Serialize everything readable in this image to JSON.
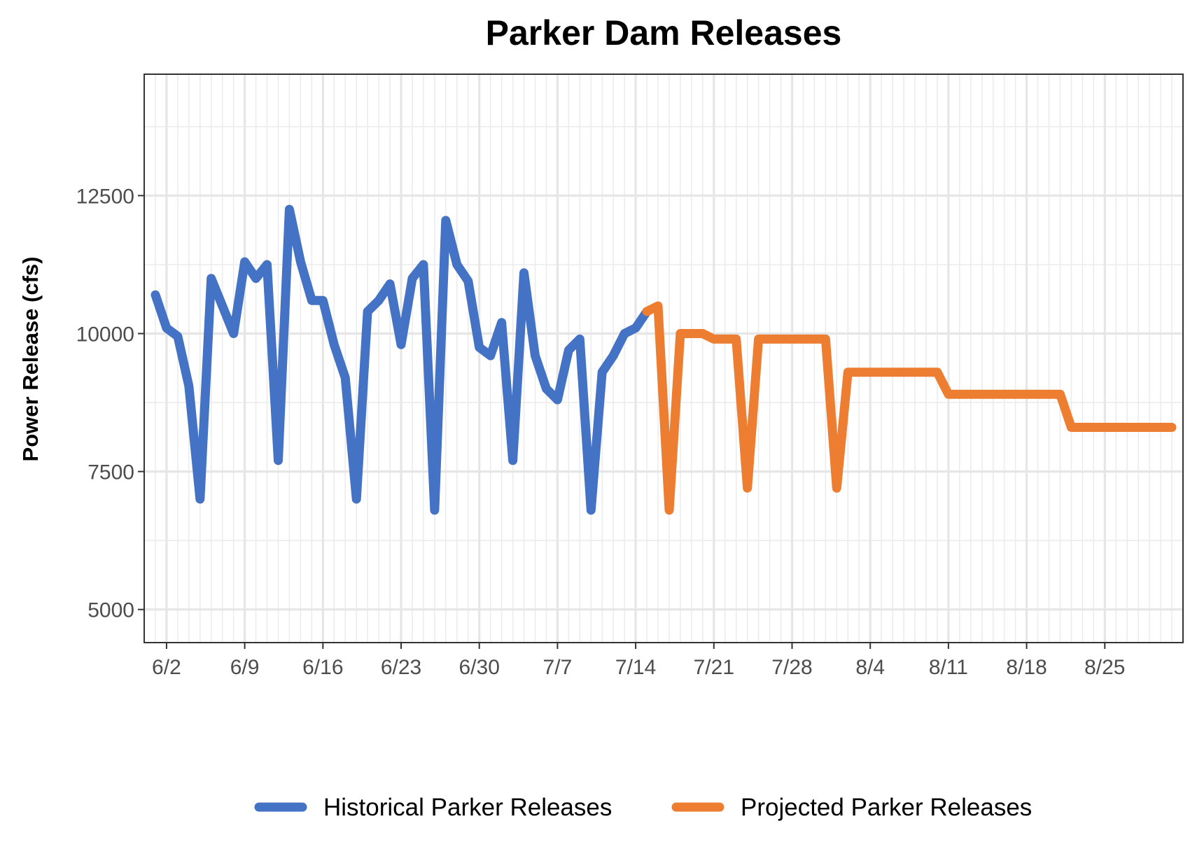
{
  "chart_data": {
    "type": "line",
    "title": "Parker Dam Releases",
    "xlabel": "",
    "ylabel": "Power Release (cfs)",
    "ylim": [
      4400,
      14700
    ],
    "y_ticks": [
      5000,
      7500,
      10000,
      12500
    ],
    "y_tick_labels": [
      "5000",
      "7500",
      "10000",
      "12500"
    ],
    "x_range": [
      "2025-05-31",
      "2025-09-01"
    ],
    "x_ticks": [
      "2025-06-02",
      "2025-06-09",
      "2025-06-16",
      "2025-06-23",
      "2025-06-30",
      "2025-07-07",
      "2025-07-14",
      "2025-07-21",
      "2025-07-28",
      "2025-08-04",
      "2025-08-11",
      "2025-08-18",
      "2025-08-25"
    ],
    "x_tick_labels": [
      "6/2",
      "6/9",
      "6/16",
      "6/23",
      "6/30",
      "7/7",
      "7/14",
      "7/21",
      "7/28",
      "8/4",
      "8/11",
      "8/18",
      "8/25"
    ],
    "grid": true,
    "legend_position": "bottom",
    "series": [
      {
        "name": "Historical Parker Releases",
        "color": "#4472C4",
        "points": [
          [
            "2025-06-01",
            10700
          ],
          [
            "2025-06-02",
            10100
          ],
          [
            "2025-06-03",
            9950
          ],
          [
            "2025-06-04",
            9050
          ],
          [
            "2025-06-05",
            7000
          ],
          [
            "2025-06-06",
            11000
          ],
          [
            "2025-06-07",
            10500
          ],
          [
            "2025-06-08",
            10000
          ],
          [
            "2025-06-09",
            11300
          ],
          [
            "2025-06-10",
            11000
          ],
          [
            "2025-06-11",
            11250
          ],
          [
            "2025-06-12",
            7700
          ],
          [
            "2025-06-13",
            12250
          ],
          [
            "2025-06-14",
            11300
          ],
          [
            "2025-06-15",
            10600
          ],
          [
            "2025-06-16",
            10600
          ],
          [
            "2025-06-17",
            9800
          ],
          [
            "2025-06-18",
            9200
          ],
          [
            "2025-06-19",
            7000
          ],
          [
            "2025-06-20",
            10400
          ],
          [
            "2025-06-21",
            10600
          ],
          [
            "2025-06-22",
            10900
          ],
          [
            "2025-06-23",
            9800
          ],
          [
            "2025-06-24",
            11000
          ],
          [
            "2025-06-25",
            11250
          ],
          [
            "2025-06-26",
            6800
          ],
          [
            "2025-06-27",
            12050
          ],
          [
            "2025-06-28",
            11250
          ],
          [
            "2025-06-29",
            10950
          ],
          [
            "2025-06-30",
            9750
          ],
          [
            "2025-07-01",
            9600
          ],
          [
            "2025-07-02",
            10200
          ],
          [
            "2025-07-03",
            7700
          ],
          [
            "2025-07-04",
            11100
          ],
          [
            "2025-07-05",
            9600
          ],
          [
            "2025-07-06",
            9000
          ],
          [
            "2025-07-07",
            8800
          ],
          [
            "2025-07-08",
            9700
          ],
          [
            "2025-07-09",
            9900
          ],
          [
            "2025-07-10",
            6800
          ],
          [
            "2025-07-11",
            9300
          ],
          [
            "2025-07-12",
            9600
          ],
          [
            "2025-07-13",
            10000
          ],
          [
            "2025-07-14",
            10100
          ],
          [
            "2025-07-15",
            10400
          ]
        ]
      },
      {
        "name": "Projected Parker Releases",
        "color": "#ED7D31",
        "points": [
          [
            "2025-07-15",
            10400
          ],
          [
            "2025-07-16",
            10500
          ],
          [
            "2025-07-17",
            6800
          ],
          [
            "2025-07-18",
            10000
          ],
          [
            "2025-07-19",
            10000
          ],
          [
            "2025-07-20",
            10000
          ],
          [
            "2025-07-21",
            9900
          ],
          [
            "2025-07-22",
            9900
          ],
          [
            "2025-07-23",
            9900
          ],
          [
            "2025-07-24",
            7200
          ],
          [
            "2025-07-25",
            9900
          ],
          [
            "2025-07-26",
            9900
          ],
          [
            "2025-07-27",
            9900
          ],
          [
            "2025-07-28",
            9900
          ],
          [
            "2025-07-29",
            9900
          ],
          [
            "2025-07-30",
            9900
          ],
          [
            "2025-07-31",
            9900
          ],
          [
            "2025-08-01",
            7200
          ],
          [
            "2025-08-02",
            9300
          ],
          [
            "2025-08-03",
            9300
          ],
          [
            "2025-08-04",
            9300
          ],
          [
            "2025-08-05",
            9300
          ],
          [
            "2025-08-06",
            9300
          ],
          [
            "2025-08-07",
            9300
          ],
          [
            "2025-08-08",
            9300
          ],
          [
            "2025-08-09",
            9300
          ],
          [
            "2025-08-10",
            9300
          ],
          [
            "2025-08-11",
            8900
          ],
          [
            "2025-08-12",
            8900
          ],
          [
            "2025-08-13",
            8900
          ],
          [
            "2025-08-14",
            8900
          ],
          [
            "2025-08-15",
            8900
          ],
          [
            "2025-08-16",
            8900
          ],
          [
            "2025-08-17",
            8900
          ],
          [
            "2025-08-18",
            8900
          ],
          [
            "2025-08-19",
            8900
          ],
          [
            "2025-08-20",
            8900
          ],
          [
            "2025-08-21",
            8900
          ],
          [
            "2025-08-22",
            8300
          ],
          [
            "2025-08-23",
            8300
          ],
          [
            "2025-08-24",
            8300
          ],
          [
            "2025-08-25",
            8300
          ],
          [
            "2025-08-26",
            8300
          ],
          [
            "2025-08-27",
            8300
          ],
          [
            "2025-08-28",
            8300
          ],
          [
            "2025-08-29",
            8300
          ],
          [
            "2025-08-30",
            8300
          ],
          [
            "2025-08-31",
            8300
          ]
        ]
      }
    ]
  }
}
